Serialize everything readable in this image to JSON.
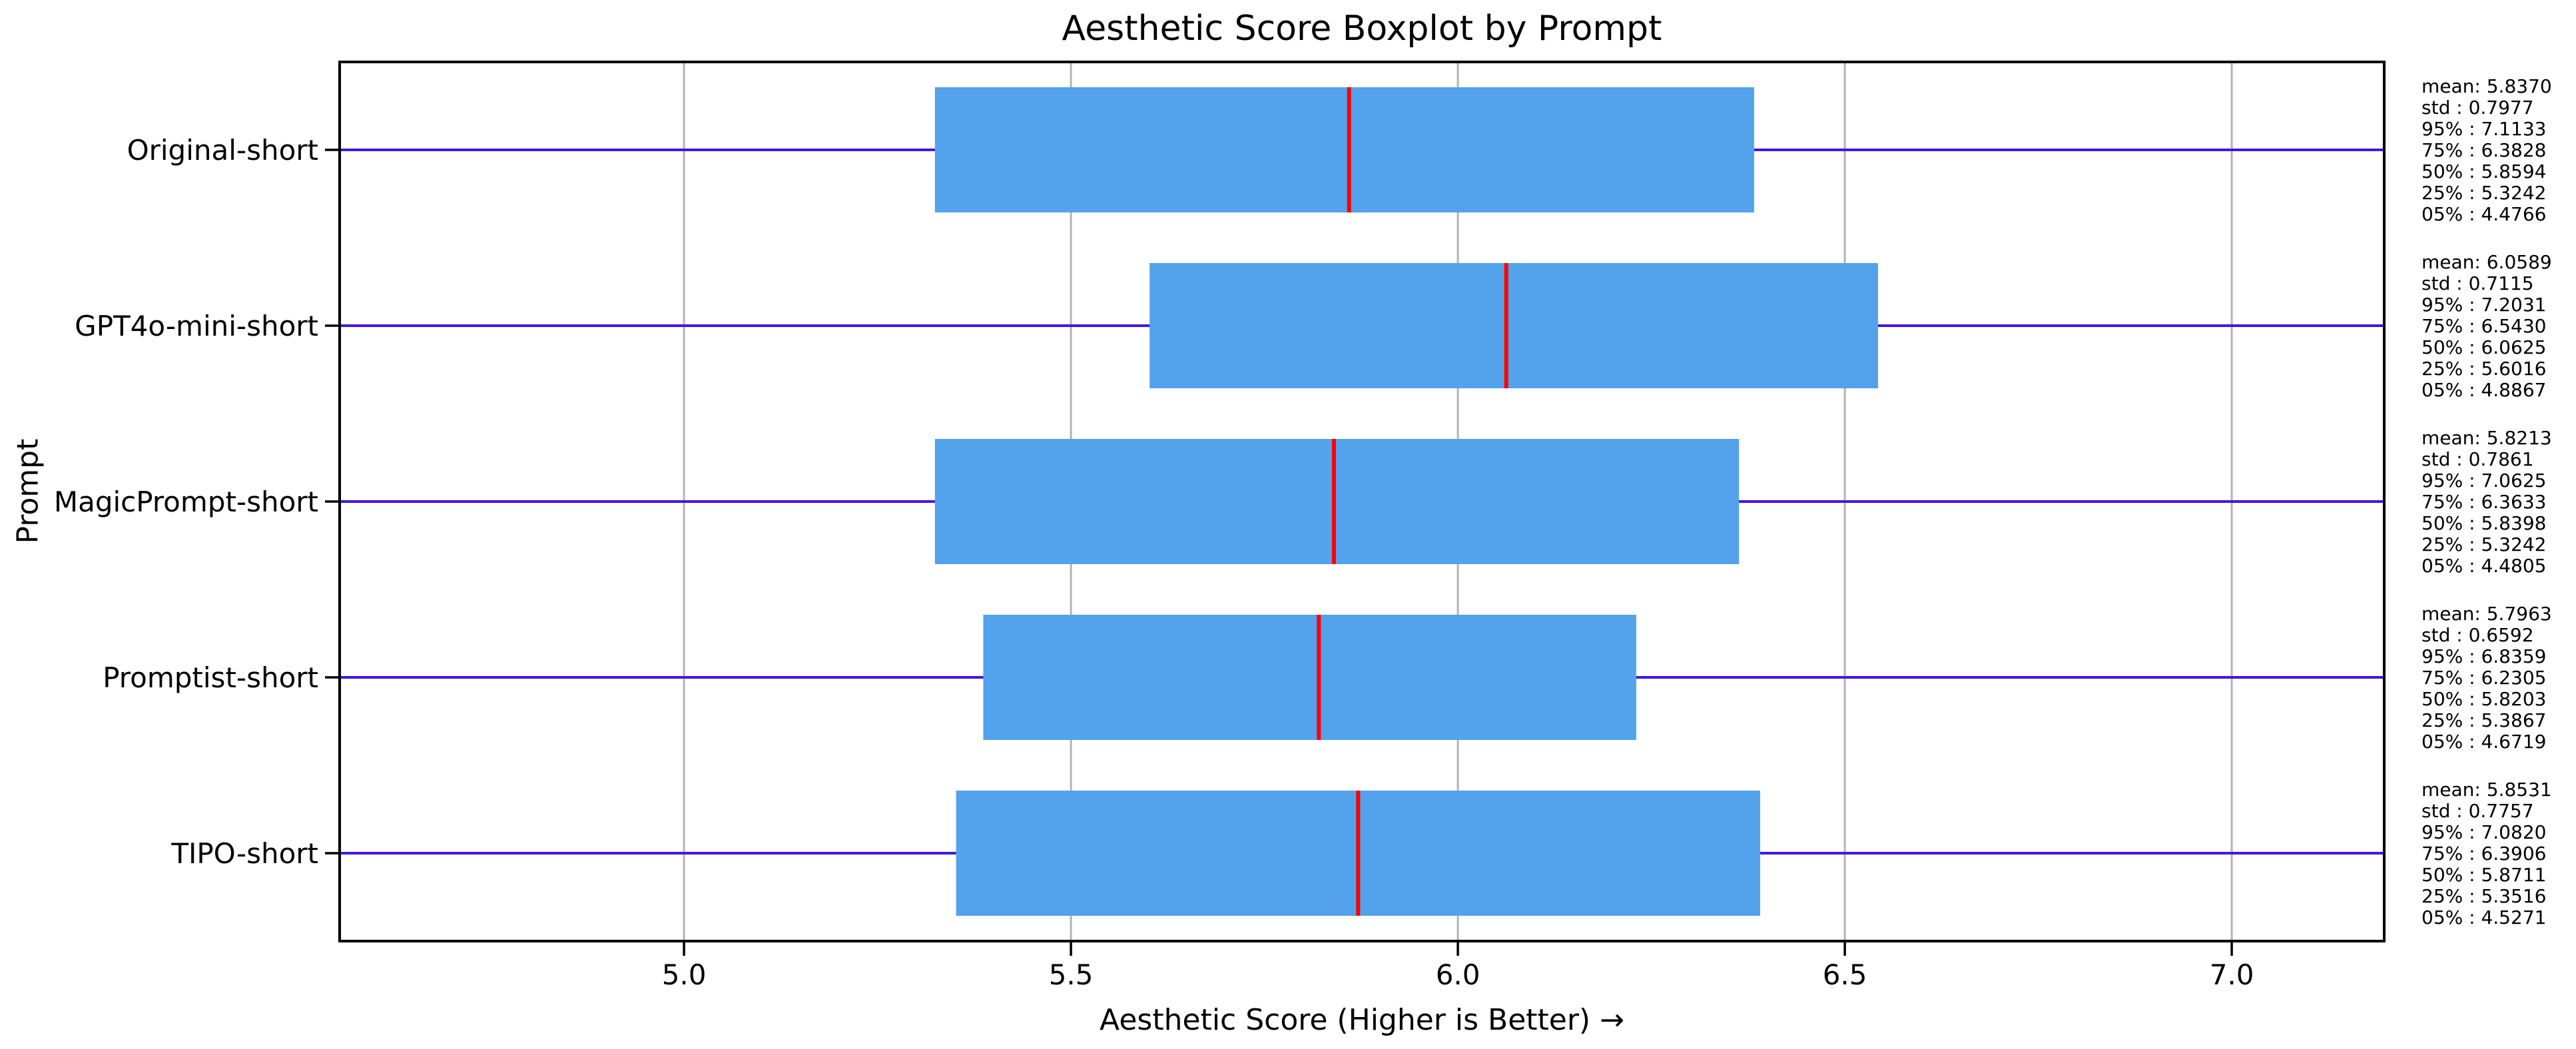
{
  "chart_data": {
    "type": "boxplot",
    "orientation": "horizontal",
    "title": "Aesthetic Score Boxplot by Prompt",
    "xlabel": "Aesthetic Score (Higher is Better) →",
    "ylabel": "Prompt",
    "xlim": [
      4.555,
      7.197
    ],
    "grid": "vertical gridlines at each x tick",
    "legend": "none",
    "x_ticks": [
      {
        "value": 5.0,
        "label": "5.0"
      },
      {
        "value": 5.5,
        "label": "5.5"
      },
      {
        "value": 6.0,
        "label": "6.0"
      },
      {
        "value": 6.5,
        "label": "6.5"
      },
      {
        "value": 7.0,
        "label": "7.0"
      }
    ],
    "colors": {
      "box_fill": "#53a3ec",
      "median_line": "#ff0000",
      "whisker_line": "#4316e3",
      "gridline": "#b3b3b3",
      "spine": "#000000",
      "text": "#000000",
      "background": "#ffffff"
    },
    "whisker_note": "whisker lines are drawn clipped to the full axis width on every row",
    "series": [
      {
        "label": "Original-short",
        "mean": 5.837,
        "std": 0.7977,
        "p95": 7.1133,
        "p75": 6.3828,
        "p50": 5.8594,
        "p25": 5.3242,
        "p05": 4.4766,
        "stats_lines": [
          "mean: 5.8370",
          "std : 0.7977",
          "95% : 7.1133",
          "75% : 6.3828",
          "50% : 5.8594",
          "25% : 5.3242",
          "05% : 4.4766"
        ]
      },
      {
        "label": "GPT4o-mini-short",
        "mean": 6.0589,
        "std": 0.7115,
        "p95": 7.2031,
        "p75": 6.543,
        "p50": 6.0625,
        "p25": 5.6016,
        "p05": 4.8867,
        "stats_lines": [
          "mean: 6.0589",
          "std : 0.7115",
          "95% : 7.2031",
          "75% : 6.5430",
          "50% : 6.0625",
          "25% : 5.6016",
          "05% : 4.8867"
        ]
      },
      {
        "label": "MagicPrompt-short",
        "mean": 5.8213,
        "std": 0.7861,
        "p95": 7.0625,
        "p75": 6.3633,
        "p50": 5.8398,
        "p25": 5.3242,
        "p05": 4.4805,
        "stats_lines": [
          "mean: 5.8213",
          "std : 0.7861",
          "95% : 7.0625",
          "75% : 6.3633",
          "50% : 5.8398",
          "25% : 5.3242",
          "05% : 4.4805"
        ]
      },
      {
        "label": "Promptist-short",
        "mean": 5.7963,
        "std": 0.6592,
        "p95": 6.8359,
        "p75": 6.2305,
        "p50": 5.8203,
        "p25": 5.3867,
        "p05": 4.6719,
        "stats_lines": [
          "mean: 5.7963",
          "std : 0.6592",
          "95% : 6.8359",
          "75% : 6.2305",
          "50% : 5.8203",
          "25% : 5.3867",
          "05% : 4.6719"
        ]
      },
      {
        "label": "TIPO-short",
        "mean": 5.8531,
        "std": 0.7757,
        "p95": 7.082,
        "p75": 6.3906,
        "p50": 5.8711,
        "p25": 5.3516,
        "p05": 4.5271,
        "stats_lines": [
          "mean: 5.8531",
          "std : 0.7757",
          "95% : 7.0820",
          "75% : 6.3906",
          "50% : 5.8711",
          "25% : 5.3516",
          "05% : 4.5271"
        ]
      }
    ]
  }
}
